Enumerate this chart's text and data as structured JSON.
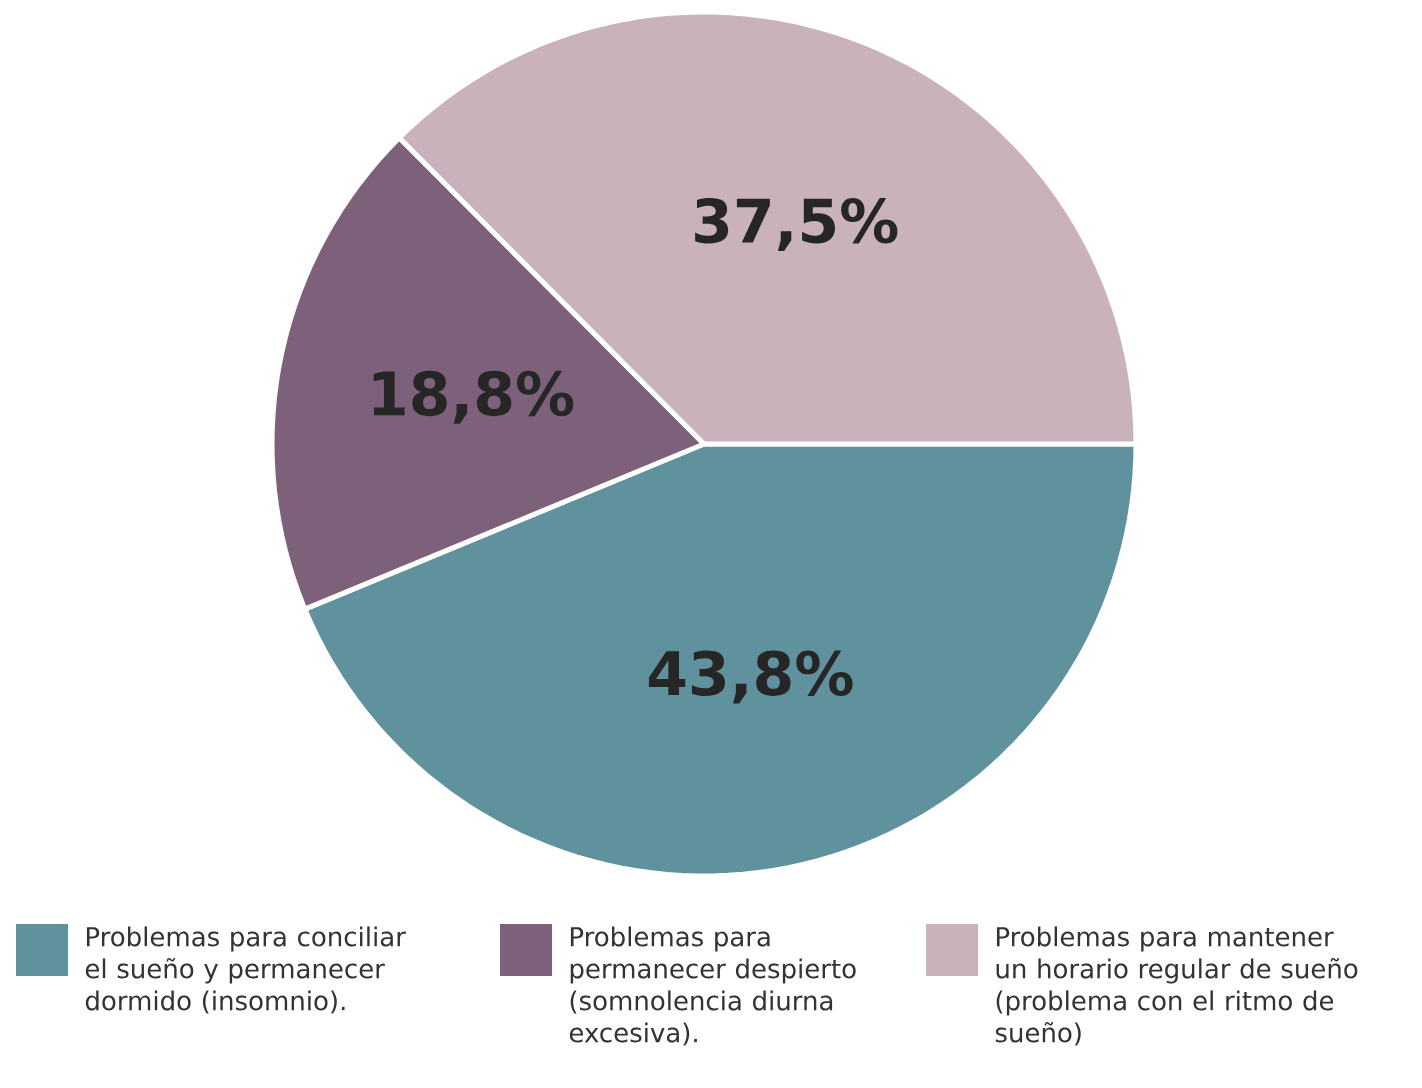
{
  "chart_data": {
    "type": "pie",
    "categories": [
      "Problemas para conciliar el sueño y permanecer dormido (insomnio).",
      "Problemas para permanecer despierto (somnolencia diurna excesiva).",
      "Problemas para mantener un horario regular de sueño (problema con el ritmo de sueño)"
    ],
    "values": [
      43.8,
      18.8,
      37.5
    ],
    "colors": [
      "#5f929c",
      "#7d6079",
      "#c9b2bb"
    ],
    "value_labels": [
      "43,8%",
      "18,8%",
      "37,5%"
    ],
    "legend": "bottom"
  }
}
